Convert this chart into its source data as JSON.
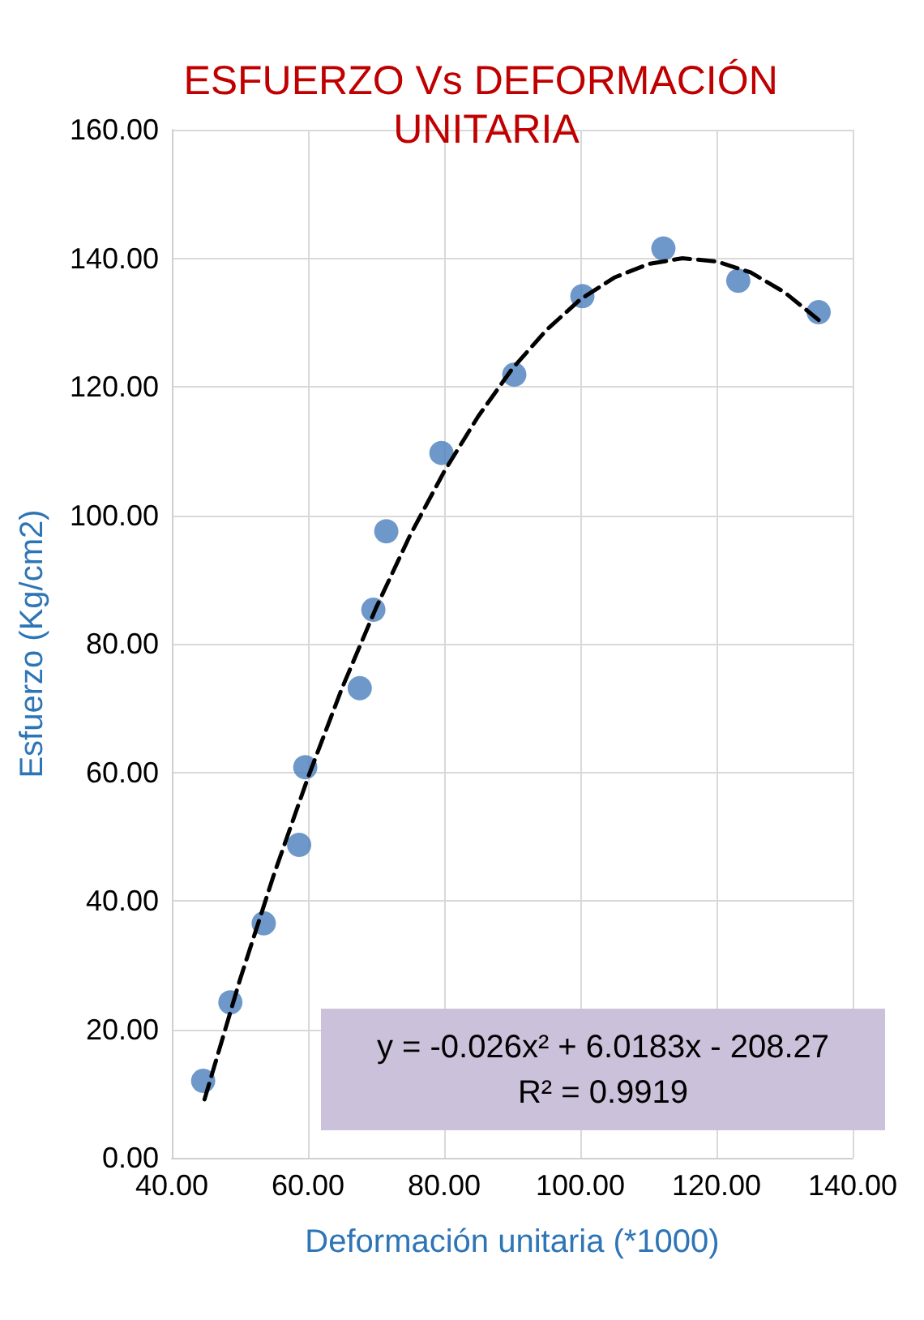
{
  "chart_data": {
    "type": "scatter",
    "title": "ESFUERZO Vs DEFORMACIÓN UNITARIA",
    "xlabel": "Deformación unitaria (*1000)",
    "ylabel": "Esfuerzo (Kg/cm2)",
    "xlim": [
      40,
      140
    ],
    "xticks": [
      {
        "value": 40,
        "label": "40.00"
      },
      {
        "value": 60,
        "label": "60.00"
      },
      {
        "value": 80,
        "label": "80.00"
      },
      {
        "value": 100,
        "label": "100.00"
      },
      {
        "value": 120,
        "label": "120.00"
      },
      {
        "value": 140,
        "label": "140.00"
      }
    ],
    "ylim": [
      0,
      160
    ],
    "yticks": [
      {
        "value": 0,
        "label": "0.00"
      },
      {
        "value": 20,
        "label": "20.00"
      },
      {
        "value": 40,
        "label": "40.00"
      },
      {
        "value": 60,
        "label": "60.00"
      },
      {
        "value": 80,
        "label": "80.00"
      },
      {
        "value": 100,
        "label": "100.00"
      },
      {
        "value": 120,
        "label": "120.00"
      },
      {
        "value": 140,
        "label": "140.00"
      },
      {
        "value": 160,
        "label": "160.00"
      }
    ],
    "grid": true,
    "marker": "circle",
    "series": [
      {
        "color": "#4a7ebb",
        "x": [
          44.6,
          48.6,
          53.5,
          58.7,
          59.6,
          67.6,
          69.6,
          71.5,
          79.6,
          90.3,
          100.3,
          112.2,
          123.2,
          135.0
        ],
        "values": [
          12.0,
          24.2,
          36.5,
          48.7,
          60.8,
          73.1,
          85.3,
          97.5,
          109.7,
          121.9,
          134.1,
          141.5,
          136.5,
          131.6
        ]
      },
      {
        "type": "line",
        "color": "#000000",
        "line_style": "dashed",
        "marker": "none",
        "x": [
          44.8,
          50,
          55,
          60,
          65,
          70,
          75,
          80,
          85,
          90,
          95,
          100,
          105,
          110,
          115,
          120,
          125,
          130,
          135
        ],
        "values": [
          9.1,
          27.7,
          44.1,
          59.2,
          73.1,
          85.6,
          96.9,
          106.8,
          115.4,
          122.8,
          128.8,
          133.6,
          137.0,
          139.1,
          140.0,
          139.5,
          137.8,
          134.7,
          130.4
        ]
      }
    ],
    "annotations": [
      "y = -0.026x² + 6.0183x - 208.27",
      "R² = 0.9919"
    ]
  }
}
